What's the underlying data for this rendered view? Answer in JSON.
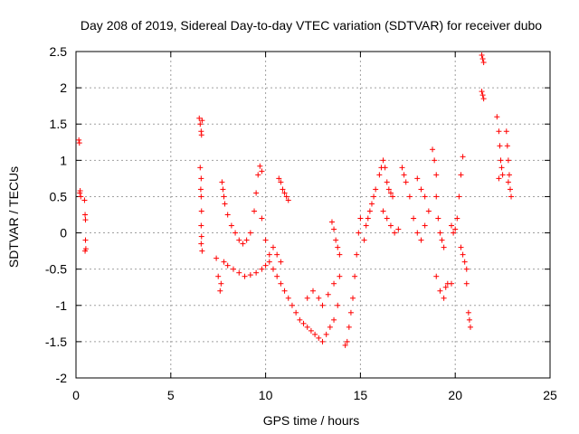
{
  "chart_data": {
    "type": "scatter",
    "title": "Day 208 of 2019, Sidereal Day-to-day VTEC variation (SDTVAR) for receiver dubo",
    "xlabel": "GPS time / hours",
    "ylabel": "SDTVAR / TECUs",
    "xlim": [
      0,
      25
    ],
    "ylim": [
      -2,
      2.5
    ],
    "x_ticks": [
      "0",
      "5",
      "10",
      "15",
      "20",
      "25"
    ],
    "y_ticks": [
      "2.5",
      "2",
      "1.5",
      "1",
      "0.5",
      "0",
      "-0.5",
      "-1",
      "-1.5",
      "-2"
    ],
    "grid": true,
    "marker": "+",
    "series_color": "#ff0000",
    "series": [
      {
        "name": "SDTVAR",
        "points": [
          [
            0.15,
            1.28
          ],
          [
            0.18,
            1.24
          ],
          [
            0.2,
            0.55
          ],
          [
            0.22,
            0.58
          ],
          [
            0.25,
            0.5
          ],
          [
            0.45,
            0.45
          ],
          [
            0.48,
            0.25
          ],
          [
            0.5,
            0.18
          ],
          [
            0.5,
            -0.1
          ],
          [
            0.52,
            -0.22
          ],
          [
            0.48,
            -0.25
          ],
          [
            6.5,
            1.58
          ],
          [
            6.55,
            1.5
          ],
          [
            6.6,
            1.4
          ],
          [
            6.62,
            1.35
          ],
          [
            6.65,
            1.55
          ],
          [
            6.55,
            0.9
          ],
          [
            6.6,
            0.75
          ],
          [
            6.58,
            0.6
          ],
          [
            6.6,
            0.5
          ],
          [
            6.62,
            0.3
          ],
          [
            6.6,
            0.1
          ],
          [
            6.62,
            -0.05
          ],
          [
            6.6,
            -0.15
          ],
          [
            6.65,
            -0.25
          ],
          [
            7.4,
            -0.35
          ],
          [
            7.5,
            -0.6
          ],
          [
            7.6,
            -0.8
          ],
          [
            7.65,
            -0.7
          ],
          [
            7.7,
            0.7
          ],
          [
            7.75,
            0.6
          ],
          [
            7.8,
            0.5
          ],
          [
            7.85,
            0.4
          ],
          [
            8.0,
            0.25
          ],
          [
            8.2,
            0.1
          ],
          [
            8.4,
            0.0
          ],
          [
            8.6,
            -0.1
          ],
          [
            8.8,
            -0.15
          ],
          [
            9.0,
            -0.1
          ],
          [
            9.2,
            0.0
          ],
          [
            9.4,
            0.3
          ],
          [
            9.5,
            0.55
          ],
          [
            9.6,
            0.8
          ],
          [
            9.7,
            0.92
          ],
          [
            9.8,
            0.85
          ],
          [
            7.8,
            -0.4
          ],
          [
            8.0,
            -0.45
          ],
          [
            8.3,
            -0.5
          ],
          [
            8.6,
            -0.55
          ],
          [
            8.9,
            -0.6
          ],
          [
            9.2,
            -0.58
          ],
          [
            9.5,
            -0.55
          ],
          [
            9.8,
            -0.5
          ],
          [
            10.0,
            -0.45
          ],
          [
            10.2,
            -0.4
          ],
          [
            10.4,
            -0.5
          ],
          [
            10.6,
            -0.6
          ],
          [
            10.8,
            -0.7
          ],
          [
            11.0,
            -0.8
          ],
          [
            11.2,
            -0.9
          ],
          [
            11.4,
            -1.0
          ],
          [
            11.6,
            -1.1
          ],
          [
            11.8,
            -1.2
          ],
          [
            12.0,
            -1.25
          ],
          [
            10.7,
            0.75
          ],
          [
            10.8,
            0.7
          ],
          [
            10.9,
            0.6
          ],
          [
            11.0,
            0.55
          ],
          [
            11.1,
            0.5
          ],
          [
            11.2,
            0.45
          ],
          [
            9.8,
            0.2
          ],
          [
            10.0,
            -0.1
          ],
          [
            10.2,
            -0.3
          ],
          [
            10.4,
            -0.2
          ],
          [
            10.6,
            -0.3
          ],
          [
            10.8,
            -0.4
          ],
          [
            12.2,
            -1.3
          ],
          [
            12.4,
            -1.35
          ],
          [
            12.6,
            -1.4
          ],
          [
            12.8,
            -1.45
          ],
          [
            13.0,
            -1.5
          ],
          [
            13.2,
            -1.4
          ],
          [
            13.4,
            -1.3
          ],
          [
            13.6,
            -1.2
          ],
          [
            13.8,
            -1.0
          ],
          [
            12.2,
            -0.9
          ],
          [
            12.5,
            -0.8
          ],
          [
            12.8,
            -0.9
          ],
          [
            13.0,
            -1.0
          ],
          [
            13.3,
            -0.85
          ],
          [
            13.6,
            -0.7
          ],
          [
            13.9,
            -0.6
          ],
          [
            13.5,
            0.15
          ],
          [
            13.6,
            0.05
          ],
          [
            13.7,
            -0.1
          ],
          [
            13.8,
            -0.2
          ],
          [
            13.9,
            -0.3
          ],
          [
            14.2,
            -1.55
          ],
          [
            14.3,
            -1.5
          ],
          [
            14.4,
            -1.3
          ],
          [
            14.5,
            -1.1
          ],
          [
            14.6,
            -0.9
          ],
          [
            14.7,
            -0.6
          ],
          [
            14.8,
            -0.3
          ],
          [
            14.9,
            0.0
          ],
          [
            15.0,
            0.2
          ],
          [
            15.2,
            -0.1
          ],
          [
            15.3,
            0.1
          ],
          [
            15.4,
            0.2
          ],
          [
            15.5,
            0.3
          ],
          [
            15.6,
            0.4
          ],
          [
            15.7,
            0.5
          ],
          [
            15.8,
            0.6
          ],
          [
            16.0,
            0.8
          ],
          [
            16.1,
            0.9
          ],
          [
            16.2,
            1.0
          ],
          [
            16.3,
            0.9
          ],
          [
            16.4,
            0.7
          ],
          [
            16.5,
            0.6
          ],
          [
            16.6,
            0.55
          ],
          [
            16.7,
            0.5
          ],
          [
            16.2,
            0.3
          ],
          [
            16.4,
            0.2
          ],
          [
            16.6,
            0.1
          ],
          [
            16.8,
            0.0
          ],
          [
            17.0,
            0.05
          ],
          [
            17.2,
            0.9
          ],
          [
            17.3,
            0.8
          ],
          [
            17.4,
            0.7
          ],
          [
            17.6,
            0.5
          ],
          [
            17.8,
            0.2
          ],
          [
            18.0,
            0.0
          ],
          [
            18.2,
            -0.1
          ],
          [
            18.4,
            0.1
          ],
          [
            18.0,
            0.75
          ],
          [
            18.2,
            0.6
          ],
          [
            18.4,
            0.5
          ],
          [
            18.6,
            0.3
          ],
          [
            18.8,
            1.15
          ],
          [
            18.9,
            1.0
          ],
          [
            19.0,
            0.8
          ],
          [
            19.0,
            0.5
          ],
          [
            19.1,
            0.2
          ],
          [
            19.2,
            0.0
          ],
          [
            19.3,
            -0.1
          ],
          [
            19.4,
            -0.2
          ],
          [
            19.0,
            -0.6
          ],
          [
            19.2,
            -0.8
          ],
          [
            19.4,
            -0.9
          ],
          [
            19.5,
            -0.75
          ],
          [
            19.6,
            -0.7
          ],
          [
            19.8,
            -0.7
          ],
          [
            19.8,
            0.1
          ],
          [
            19.9,
            0.0
          ],
          [
            20.0,
            0.05
          ],
          [
            20.1,
            0.2
          ],
          [
            20.2,
            0.5
          ],
          [
            20.3,
            0.8
          ],
          [
            20.4,
            1.05
          ],
          [
            20.3,
            -0.2
          ],
          [
            20.4,
            -0.3
          ],
          [
            20.5,
            -0.4
          ],
          [
            20.6,
            -0.5
          ],
          [
            20.6,
            -0.7
          ],
          [
            20.7,
            -1.1
          ],
          [
            20.75,
            -1.2
          ],
          [
            20.8,
            -1.3
          ],
          [
            21.4,
            2.45
          ],
          [
            21.45,
            2.4
          ],
          [
            21.5,
            2.35
          ],
          [
            21.4,
            1.95
          ],
          [
            21.45,
            1.9
          ],
          [
            21.5,
            1.85
          ],
          [
            22.2,
            1.6
          ],
          [
            22.3,
            1.4
          ],
          [
            22.35,
            1.2
          ],
          [
            22.4,
            1.0
          ],
          [
            22.45,
            0.9
          ],
          [
            22.5,
            0.8
          ],
          [
            22.3,
            0.75
          ],
          [
            22.7,
            1.4
          ],
          [
            22.75,
            1.2
          ],
          [
            22.8,
            1.0
          ],
          [
            22.85,
            0.8
          ],
          [
            22.9,
            0.6
          ],
          [
            22.95,
            0.5
          ],
          [
            22.8,
            0.7
          ]
        ]
      }
    ]
  }
}
